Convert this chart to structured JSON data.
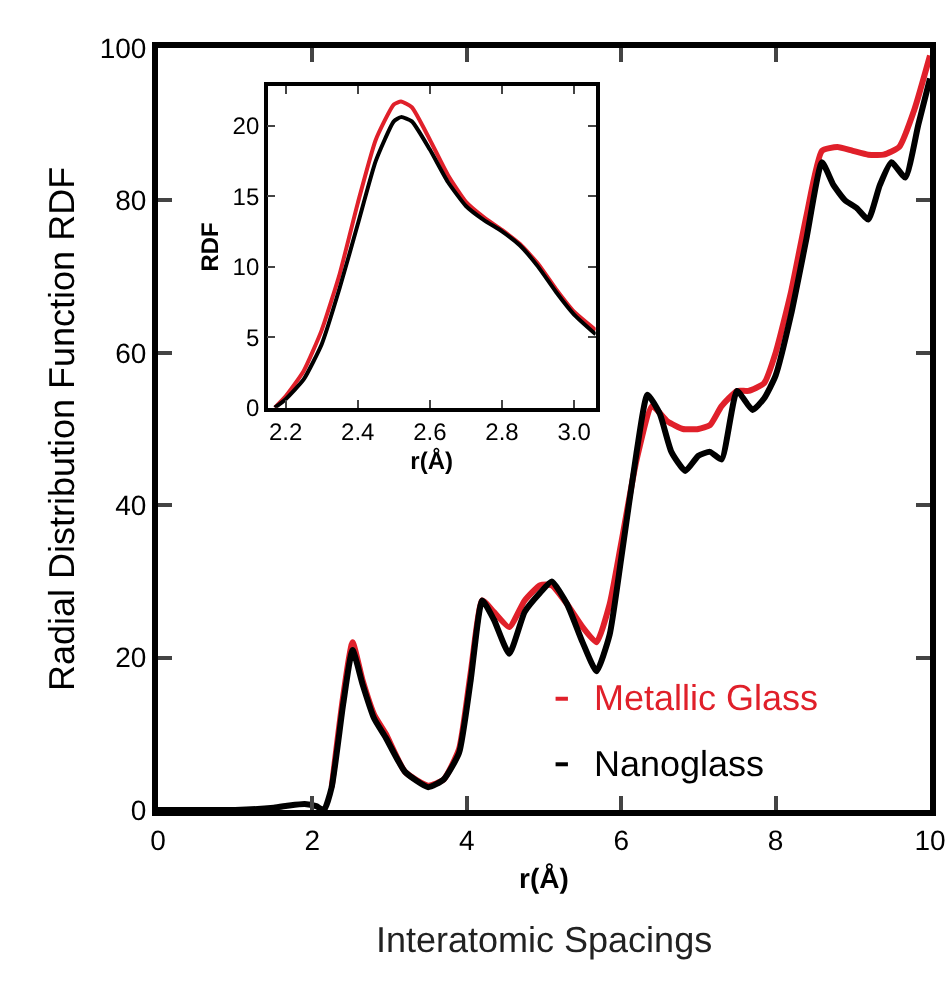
{
  "chart_data": [
    {
      "type": "line",
      "xlabel": "r(Å)",
      "ylabel": "Radial Distribution Function RDF",
      "annotations": [
        "Interatomic Spacings"
      ],
      "xlim": [
        0,
        10
      ],
      "ylim": [
        0,
        100
      ],
      "xticks": [
        0,
        2,
        4,
        6,
        8,
        10
      ],
      "yticks": [
        0,
        20,
        40,
        60,
        80,
        100
      ],
      "legend": "bottom right",
      "series": [
        {
          "name": "Metallic Glass",
          "color": "#e0202a",
          "x": [
            2.25,
            2.4,
            2.52,
            2.65,
            2.8,
            2.95,
            3.2,
            3.5,
            3.7,
            3.9,
            4.05,
            4.2,
            4.35,
            4.55,
            4.75,
            4.95,
            5.1,
            5.3,
            5.5,
            5.68,
            5.85,
            6.0,
            6.2,
            6.4,
            6.6,
            6.8,
            7.0,
            7.15,
            7.3,
            7.5,
            7.65,
            7.85,
            8.0,
            8.2,
            8.4,
            8.6,
            8.8,
            9.0,
            9.2,
            9.4,
            9.6,
            9.8,
            10.0
          ],
          "values": [
            3,
            15,
            22,
            17,
            12.5,
            10,
            5,
            3.2,
            4,
            8,
            18,
            27.5,
            26,
            24,
            27.5,
            29.5,
            29.5,
            27,
            24,
            22,
            27,
            35,
            46,
            53,
            51,
            50,
            50,
            50.5,
            53,
            55,
            55,
            56,
            60,
            68,
            78,
            86.5,
            87,
            86.5,
            86,
            86,
            87,
            92,
            99
          ]
        },
        {
          "name": "Nanoglass",
          "color": "#000000",
          "x": [
            0,
            0.5,
            1.0,
            1.5,
            1.7,
            1.9,
            2.05,
            2.15,
            2.25,
            2.4,
            2.52,
            2.65,
            2.8,
            2.95,
            3.2,
            3.5,
            3.7,
            3.9,
            4.05,
            4.2,
            4.35,
            4.55,
            4.75,
            4.95,
            5.1,
            5.3,
            5.5,
            5.68,
            5.85,
            6.0,
            6.2,
            6.34,
            6.5,
            6.65,
            6.83,
            7.0,
            7.15,
            7.3,
            7.5,
            7.7,
            7.85,
            8.0,
            8.2,
            8.4,
            8.6,
            8.75,
            8.9,
            9.05,
            9.2,
            9.35,
            9.5,
            9.68,
            9.85,
            10.0
          ],
          "values": [
            0,
            0,
            0,
            0.3,
            0.6,
            0.8,
            0.5,
            0,
            3,
            14,
            21,
            16.5,
            12,
            9.5,
            5,
            3,
            4,
            7.5,
            17,
            27.5,
            25,
            20.5,
            26,
            28.5,
            30,
            27,
            22,
            18.2,
            23,
            33,
            47,
            54.5,
            52,
            47,
            44.5,
            46.5,
            47,
            46,
            55,
            52.5,
            54,
            57,
            65,
            75,
            85,
            82,
            80,
            79,
            77.5,
            82,
            85,
            83,
            90,
            96
          ]
        }
      ]
    },
    {
      "type": "line",
      "xlabel": "r(Å)",
      "ylabel": "RDF",
      "xlim": [
        2.15,
        3.06
      ],
      "ylim": [
        0,
        22.8
      ],
      "xticks": [
        {
          "value": 2.2,
          "label": "2.2"
        },
        {
          "value": 2.4,
          "label": "2.4"
        },
        {
          "value": 2.6,
          "label": "2.6"
        },
        {
          "value": 2.8,
          "label": "2.8"
        },
        {
          "value": 3.0,
          "label": "3.0"
        }
      ],
      "yticks": [
        0,
        5,
        10,
        15,
        20
      ],
      "series": [
        {
          "color": "#e0202a",
          "x": [
            2.17,
            2.2,
            2.25,
            2.3,
            2.35,
            2.4,
            2.45,
            2.5,
            2.52,
            2.55,
            2.6,
            2.65,
            2.7,
            2.75,
            2.8,
            2.85,
            2.9,
            2.95,
            3.0,
            3.06
          ],
          "values": [
            0,
            0.8,
            2.6,
            5.5,
            9.5,
            14.5,
            19,
            21.5,
            21.7,
            21.3,
            19,
            16.5,
            14.6,
            13.5,
            12.6,
            11.6,
            10.2,
            8.4,
            6.8,
            5.5
          ]
        },
        {
          "color": "#000000",
          "x": [
            2.17,
            2.2,
            2.25,
            2.3,
            2.35,
            2.4,
            2.45,
            2.5,
            2.52,
            2.55,
            2.6,
            2.65,
            2.7,
            2.75,
            2.8,
            2.85,
            2.9,
            2.95,
            3.0,
            3.06
          ],
          "values": [
            0,
            0.6,
            2,
            4.5,
            8.5,
            13,
            17.5,
            20.3,
            20.6,
            20.3,
            18.3,
            16,
            14.3,
            13.3,
            12.5,
            11.5,
            10,
            8.2,
            6.6,
            5.2
          ]
        }
      ]
    }
  ]
}
